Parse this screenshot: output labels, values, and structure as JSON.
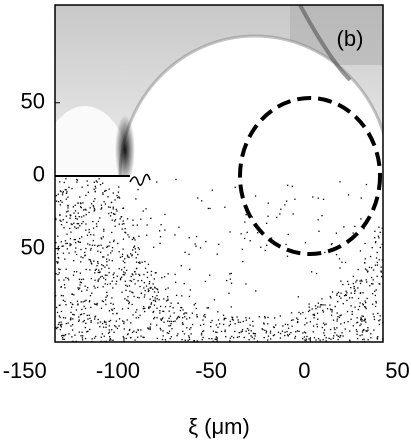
{
  "chart_data": {
    "type": "image",
    "panel_label": "(b)",
    "xlabel": "ξ (μm)",
    "xlim": [
      -137,
      39
    ],
    "xticks": [
      -150,
      -100,
      -50,
      0,
      50
    ],
    "ylim": [
      -114,
      117
    ],
    "yticks": [
      {
        "value": 50,
        "label": "50"
      },
      0,
      {
        "value": -50,
        "label": "50"
      }
    ]
  }
}
